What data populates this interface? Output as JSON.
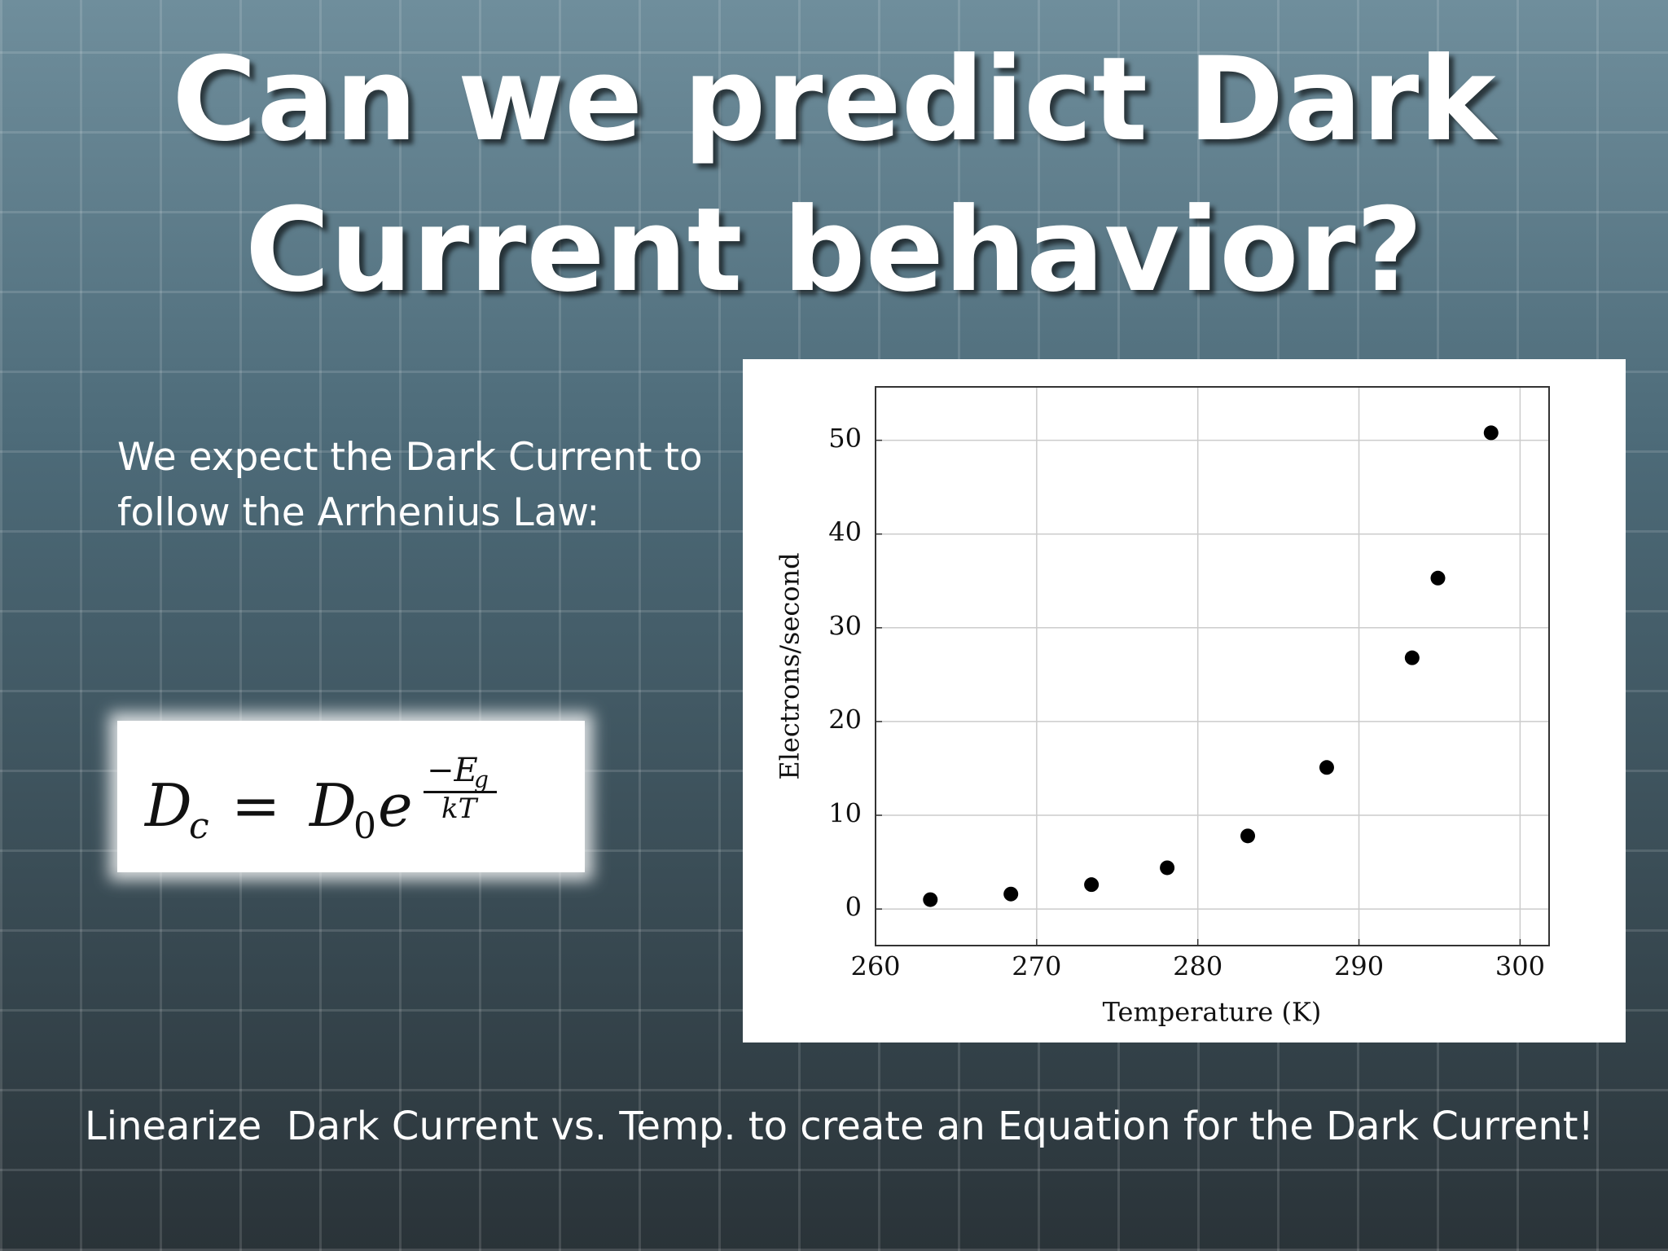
{
  "title": "Can we predict Dark Current behavior?",
  "body": [
    "We expect the Dark Current to",
    "follow the Arrhenius Law:"
  ],
  "formula": {
    "lhs": "D",
    "lhs_sub": "c",
    "equals": "=",
    "rhs": "D",
    "rhs_sub": "0",
    "exp_base": "e",
    "numerator": "−E",
    "numerator_sub": "g",
    "denominator": "kT"
  },
  "footer": "Linearize  Dark Current vs. Temp. to create an Equation for the Dark Current!",
  "chart_data": {
    "type": "scatter",
    "x_label": "Temperature (K)",
    "y_label": "Electrons/second",
    "x": [
      263.4,
      268.4,
      273.4,
      278.1,
      283.1,
      288.0,
      293.3,
      294.9,
      298.2
    ],
    "values": [
      1.0,
      1.6,
      2.6,
      4.4,
      7.8,
      15.1,
      26.8,
      35.3,
      50.8
    ],
    "color": "#000000",
    "xlim": [
      260,
      301.8
    ],
    "ylim": [
      -3.9,
      55.7
    ],
    "xticks": [
      260,
      270,
      280,
      290,
      300
    ],
    "yticks": [
      0,
      10,
      20,
      30,
      40,
      50
    ],
    "grid": true
  }
}
